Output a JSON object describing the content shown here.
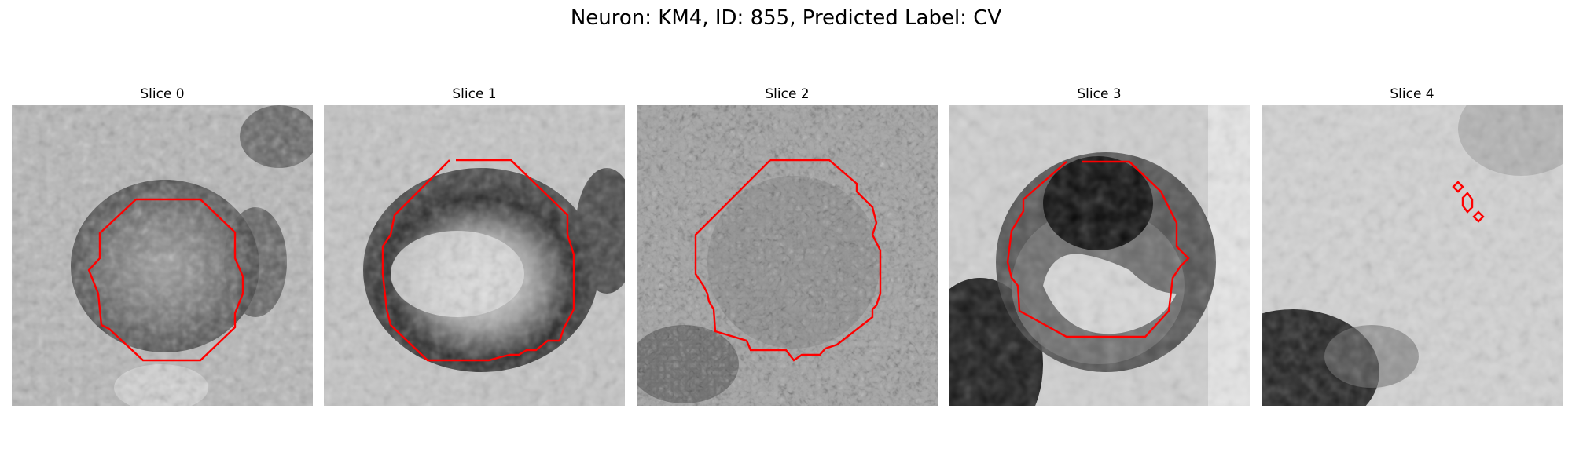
{
  "figure": {
    "title": "Neuron: KM4, ID: 855, Predicted Label: CV"
  },
  "panels": [
    {
      "title": "Slice 0"
    },
    {
      "title": "Slice 1"
    },
    {
      "title": "Slice 2"
    },
    {
      "title": "Slice 3"
    },
    {
      "title": "Slice 4"
    }
  ],
  "colors": {
    "contour": "#ff0000",
    "background": "#ffffff"
  }
}
